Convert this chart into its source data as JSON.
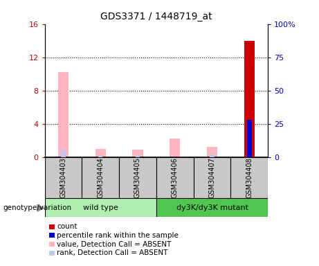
{
  "title": "GDS3371 / 1448719_at",
  "samples": [
    "GSM304403",
    "GSM304404",
    "GSM304405",
    "GSM304406",
    "GSM304407",
    "GSM304408"
  ],
  "count_values": [
    0,
    0,
    0,
    0,
    0,
    14
  ],
  "percentile_rank_values": [
    0,
    0,
    0,
    0,
    0,
    28
  ],
  "value_absent": [
    10.2,
    1.0,
    0.85,
    2.2,
    1.25,
    0
  ],
  "rank_absent": [
    5.2,
    1.4,
    1.2,
    0,
    1.7,
    0
  ],
  "count_color": "#cc0000",
  "percentile_color": "#0000cc",
  "value_absent_color": "#ffb6c1",
  "rank_absent_color": "#c0c8f0",
  "ylim_left": [
    0,
    16
  ],
  "ylim_right": [
    0,
    100
  ],
  "yticks_left": [
    0,
    4,
    8,
    12,
    16
  ],
  "ytick_labels_left": [
    "0",
    "4",
    "8",
    "12",
    "16"
  ],
  "yticks_right": [
    0,
    25,
    50,
    75,
    100
  ],
  "ytick_labels_right": [
    "0",
    "25",
    "50",
    "75",
    "100%"
  ],
  "grid_lines": [
    4,
    8,
    12
  ],
  "wt_color": "#b0f0b0",
  "mut_color": "#50c850",
  "box_color": "#c8c8c8",
  "legend_items": [
    {
      "label": "count",
      "color": "#cc0000"
    },
    {
      "label": "percentile rank within the sample",
      "color": "#0000cc"
    },
    {
      "label": "value, Detection Call = ABSENT",
      "color": "#ffb6c1"
    },
    {
      "label": "rank, Detection Call = ABSENT",
      "color": "#c0c8f0"
    }
  ]
}
